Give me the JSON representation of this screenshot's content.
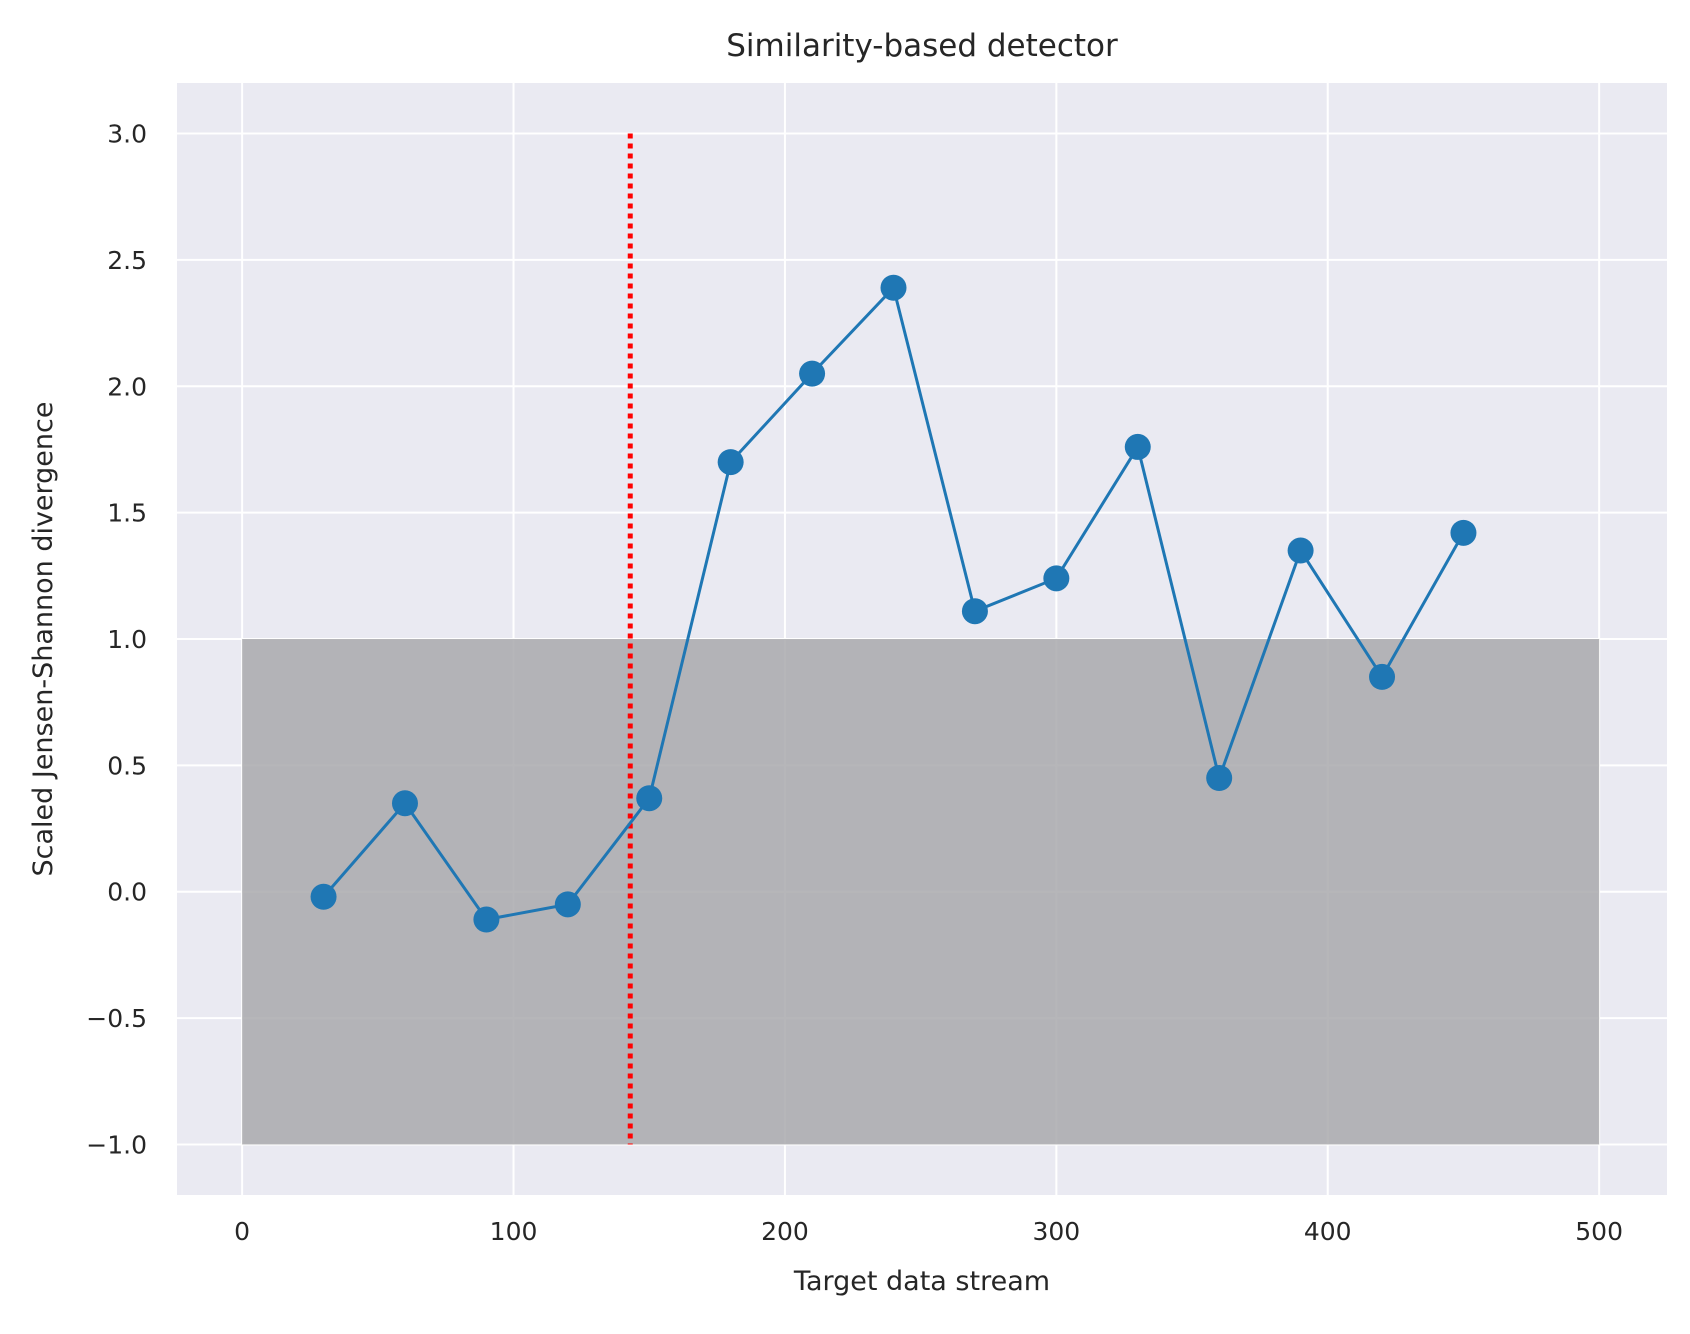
{
  "chart_data": {
    "type": "line",
    "title": "Similarity-based detector",
    "xlabel": "Target data stream",
    "ylabel": "Scaled Jensen-Shannon divergence",
    "xlim": [
      -24,
      525
    ],
    "ylim": [
      -1.2,
      3.2
    ],
    "xticks": [
      0,
      100,
      200,
      300,
      400,
      500
    ],
    "yticks": [
      -1.0,
      -0.5,
      0.0,
      0.5,
      1.0,
      1.5,
      2.0,
      2.5,
      3.0
    ],
    "xtick_labels": [
      "0",
      "100",
      "200",
      "300",
      "400",
      "500"
    ],
    "ytick_labels": [
      "−1.0",
      "−0.5",
      "0.0",
      "0.5",
      "1.0",
      "1.5",
      "2.0",
      "2.5",
      "3.0"
    ],
    "grid": true,
    "series": [
      {
        "x": [
          30,
          60,
          90,
          120,
          150,
          180,
          210,
          240,
          270,
          300,
          330,
          360,
          390,
          420,
          450
        ],
        "y": [
          -0.02,
          0.35,
          -0.11,
          -0.05,
          0.37,
          1.7,
          2.05,
          2.39,
          1.11,
          1.24,
          1.76,
          0.45,
          1.35,
          0.85,
          1.42
        ],
        "color": "#1f77b4",
        "marker": "circle"
      }
    ],
    "band": {
      "x": [
        0,
        500
      ],
      "y": [
        -1.0,
        1.0
      ],
      "color": "#a9a9ad"
    },
    "vline": {
      "x": 143,
      "y": [
        -1.0,
        3.0
      ],
      "color": "#ff0000",
      "style": "dotted"
    },
    "colors": {
      "plot_background": "#eaeaf2",
      "grid": "#ffffff"
    }
  }
}
